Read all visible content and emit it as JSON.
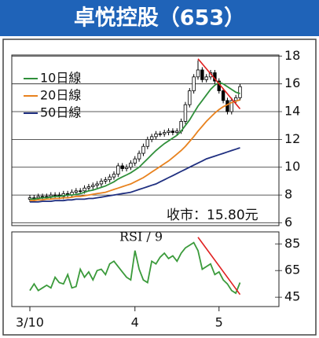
{
  "chart_data": [
    {
      "type": "candlestick",
      "title": "卓悦控股（653）",
      "categories": [
        "3/10",
        null,
        null,
        null,
        null,
        null,
        null,
        null,
        null,
        null,
        null,
        null,
        null,
        null,
        null,
        null,
        null,
        null,
        null,
        null,
        null,
        null,
        null,
        null,
        null,
        "4",
        null,
        null,
        null,
        null,
        null,
        null,
        null,
        null,
        null,
        null,
        null,
        null,
        null,
        null,
        null,
        null,
        null,
        null,
        null,
        "5",
        null,
        null,
        null,
        null,
        null
      ],
      "open": [
        7.7,
        7.8,
        7.8,
        7.9,
        7.9,
        7.9,
        8.0,
        8.0,
        7.9,
        8.1,
        8.0,
        8.2,
        8.3,
        8.3,
        8.5,
        8.6,
        8.7,
        8.8,
        9.0,
        9.1,
        9.3,
        9.5,
        10.1,
        9.9,
        10.0,
        10.3,
        10.6,
        11.0,
        11.5,
        12.0,
        12.2,
        12.4,
        12.4,
        12.5,
        12.6,
        12.5,
        12.6,
        13.3,
        14.5,
        15.5,
        16.5,
        17.0,
        16.3,
        16.5,
        16.8,
        16.2,
        15.5,
        14.8,
        14.0,
        14.8,
        15.0
      ],
      "high": [
        8.0,
        8.0,
        8.1,
        8.1,
        8.1,
        8.2,
        8.2,
        8.2,
        8.3,
        8.3,
        8.4,
        8.5,
        8.5,
        8.7,
        8.8,
        8.9,
        9.0,
        9.2,
        9.3,
        9.5,
        9.7,
        10.3,
        10.3,
        10.2,
        10.5,
        10.8,
        11.2,
        11.7,
        12.2,
        12.4,
        12.6,
        12.6,
        12.7,
        12.8,
        12.8,
        12.8,
        13.5,
        14.7,
        15.7,
        16.7,
        17.7,
        17.2,
        16.7,
        17.0,
        17.0,
        16.4,
        15.7,
        15.0,
        15.0,
        15.2,
        16.0
      ],
      "low": [
        7.5,
        7.6,
        7.6,
        7.7,
        7.7,
        7.7,
        7.8,
        7.7,
        7.7,
        7.8,
        7.8,
        8.0,
        8.1,
        8.1,
        8.3,
        8.4,
        8.5,
        8.6,
        8.8,
        8.9,
        9.1,
        9.3,
        9.7,
        9.7,
        9.8,
        10.1,
        10.4,
        10.8,
        11.3,
        11.8,
        12.0,
        12.2,
        12.2,
        12.3,
        12.3,
        12.3,
        12.4,
        13.1,
        14.3,
        15.3,
        16.3,
        16.1,
        16.1,
        16.3,
        16.0,
        15.3,
        14.6,
        13.8,
        13.8,
        14.6,
        14.8
      ],
      "close": [
        7.8,
        7.8,
        7.9,
        7.9,
        7.9,
        8.0,
        8.0,
        7.9,
        8.1,
        8.0,
        8.2,
        8.3,
        8.3,
        8.5,
        8.6,
        8.7,
        8.8,
        9.0,
        9.1,
        9.3,
        9.5,
        10.1,
        9.9,
        10.0,
        10.3,
        10.6,
        11.0,
        11.5,
        12.0,
        12.2,
        12.4,
        12.4,
        12.5,
        12.6,
        12.5,
        12.6,
        13.3,
        14.5,
        15.5,
        16.5,
        17.0,
        16.3,
        16.5,
        16.8,
        16.2,
        15.5,
        14.8,
        14.0,
        14.8,
        15.0,
        15.8
      ],
      "series": [
        {
          "name": "10日線",
          "color": "#2f8f3a",
          "values": [
            7.7,
            7.7,
            7.75,
            7.8,
            7.8,
            7.85,
            7.9,
            7.9,
            7.95,
            8.0,
            8.0,
            8.05,
            8.1,
            8.2,
            8.3,
            8.35,
            8.45,
            8.55,
            8.65,
            8.8,
            8.95,
            9.15,
            9.3,
            9.45,
            9.6,
            9.8,
            10.0,
            10.3,
            10.6,
            10.9,
            11.2,
            11.45,
            11.7,
            11.9,
            12.1,
            12.3,
            12.6,
            13.0,
            13.4,
            13.9,
            14.4,
            14.8,
            15.2,
            15.6,
            15.9,
            16.1,
            16.0,
            15.8,
            15.6,
            15.4,
            15.3
          ]
        },
        {
          "name": "20日線",
          "color": "#e8821e",
          "values": [
            7.6,
            7.6,
            7.65,
            7.65,
            7.7,
            7.7,
            7.75,
            7.75,
            7.8,
            7.8,
            7.85,
            7.9,
            7.9,
            7.95,
            8.0,
            8.05,
            8.1,
            8.15,
            8.2,
            8.3,
            8.4,
            8.5,
            8.6,
            8.7,
            8.8,
            8.95,
            9.1,
            9.25,
            9.45,
            9.65,
            9.85,
            10.05,
            10.25,
            10.45,
            10.7,
            10.95,
            11.2,
            11.5,
            11.85,
            12.2,
            12.6,
            12.95,
            13.3,
            13.6,
            13.9,
            14.15,
            14.35,
            14.5,
            14.65,
            14.75,
            14.85
          ]
        },
        {
          "name": "50日線",
          "color": "#1f2f80",
          "values": [
            7.5,
            7.5,
            7.5,
            7.55,
            7.55,
            7.55,
            7.6,
            7.6,
            7.6,
            7.65,
            7.65,
            7.7,
            7.7,
            7.7,
            7.75,
            7.75,
            7.8,
            7.85,
            7.9,
            7.95,
            8.0,
            8.05,
            8.1,
            8.15,
            8.2,
            8.3,
            8.4,
            8.5,
            8.6,
            8.7,
            8.8,
            8.95,
            9.1,
            9.25,
            9.4,
            9.55,
            9.7,
            9.85,
            10.0,
            10.15,
            10.3,
            10.45,
            10.6,
            10.7,
            10.8,
            10.9,
            11.0,
            11.1,
            11.2,
            11.3,
            11.4
          ]
        }
      ],
      "trendline": {
        "x": [
          40,
          50
        ],
        "y": [
          17.8,
          14.2
        ],
        "color": "#e02020"
      },
      "annotation": "收市：15.80元",
      "ylim": [
        5.8,
        18.3
      ],
      "yticks": [
        6,
        8,
        10,
        12,
        14,
        16,
        18
      ],
      "grid": true
    },
    {
      "type": "line",
      "title": "RSI / 9",
      "series": [
        {
          "name": "RSI",
          "color": "#3a9a3a",
          "values": [
            50,
            55,
            50,
            52,
            54,
            52,
            60,
            56,
            55,
            62,
            52,
            53,
            66,
            60,
            64,
            58,
            65,
            66,
            62,
            70,
            72,
            68,
            64,
            60,
            58,
            80,
            66,
            58,
            56,
            72,
            70,
            75,
            78,
            74,
            76,
            72,
            78,
            82,
            84,
            86,
            80,
            66,
            68,
            70,
            62,
            64,
            58,
            55,
            50,
            48,
            56
          ]
        }
      ],
      "trendline": {
        "x": [
          40,
          50
        ],
        "y": [
          90,
          47
        ],
        "color": "#e02020"
      },
      "ylim": [
        38,
        94
      ],
      "yticks": [
        45,
        65,
        85
      ],
      "grid": false
    }
  ]
}
